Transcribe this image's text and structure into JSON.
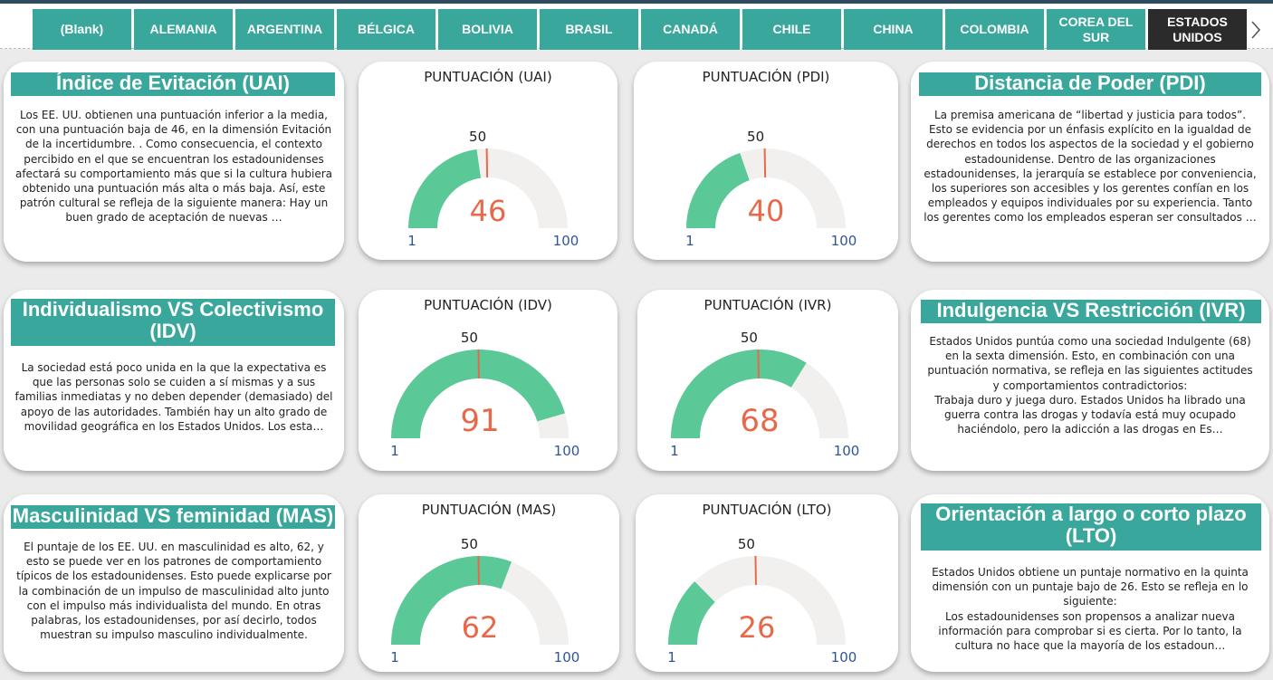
{
  "slicer": {
    "items": [
      "(Blank)",
      "ALEMANIA",
      "ARGENTINA",
      "BÉLGICA",
      "BOLIVIA",
      "BRASIL",
      "CANADÁ",
      "CHILE",
      "CHINA",
      "COLOMBIA",
      "COREA DEL SUR",
      "ESTADOS UNIDOS"
    ],
    "selected": "ESTADOS UNIDOS",
    "next_icon": "chevron-right-icon"
  },
  "colors": {
    "accent": "#3aa79c",
    "gauge_fill": "#5bc898",
    "gauge_track": "#f1f0ee",
    "target": "#e8684a",
    "value": "#e8684a",
    "minmax": "#2f5597"
  },
  "dimensions": {
    "uai": {
      "title": "Índice de Evitación (UAI)",
      "text": "Los EE. UU. obtienen una puntuación inferior a la media, con una puntuación baja de 46, en la dimensión Evitación de la incertidumbre. . Como consecuencia, el contexto percibido en el que se encuentran los estadounidenses afectará su comportamiento más que si la cultura hubiera obtenido una puntuación más alta o más baja. Así, este patrón cultural se refleja de la siguiente manera: Hay un buen grado de aceptación de nuevas …",
      "gauge": {
        "title": "PUNTUACIÓN (UAI)",
        "value": 46,
        "min": 1,
        "max": 100,
        "target": 50
      }
    },
    "pdi": {
      "title": "Distancia de Poder (PDI)",
      "text": "La premisa americana de “libertad y justicia para todos”. Esto se evidencia por un énfasis explícito en la igualdad de derechos en todos los aspectos de la sociedad y el gobierno estadounidense. Dentro de las organizaciones estadounidenses, la jerarquía se establece por conveniencia, los superiores son accesibles y los gerentes confían en los empleados y equipos individuales por su experiencia. Tanto los gerentes como los empleados esperan ser consultados …",
      "gauge": {
        "title": "PUNTUACIÓN (PDI)",
        "value": 40,
        "min": 1,
        "max": 100,
        "target": 50
      }
    },
    "idv": {
      "title": "Individualismo VS Colectivismo (IDV)",
      "text": "La sociedad está poco unida en la que la expectativa es que las personas solo se cuiden a sí mismas y a sus familias inmediatas y no deben depender (demasiado) del apoyo de las autoridades. También hay un alto grado de movilidad geográfica en los Estados Unidos. Los esta…",
      "gauge": {
        "title": "PUNTUACIÓN (IDV)",
        "value": 91,
        "min": 1,
        "max": 100,
        "target": 50
      }
    },
    "ivr": {
      "title": "Indulgencia VS Restricción (IVR)",
      "text": "Estados Unidos puntúa como una sociedad Indulgente (68) en la sexta dimensión. Esto, en combinación con una puntuación normativa, se refleja en las siguientes actitudes y comportamientos contradictorios:\nTrabaja duro y juega duro. Estados Unidos ha librado una guerra contra las drogas y todavía está muy ocupado haciéndolo, pero la adicción a las drogas en Es…",
      "gauge": {
        "title": "PUNTUACIÓN (IVR)",
        "value": 68,
        "min": 1,
        "max": 100,
        "target": 50
      }
    },
    "mas": {
      "title": "Masculinidad VS feminidad (MAS)",
      "text": "El puntaje de los EE. UU. en masculinidad es alto, 62, y esto se puede ver en los patrones de comportamiento típicos de los estadounidenses. Esto puede explicarse por la combinación de un impulso de masculinidad alto junto con el impulso más individualista del mundo. En otras palabras, los estadounidenses, por así decirlo, todos muestran su impulso masculino individualmente.",
      "gauge": {
        "title": "PUNTUACIÓN (MAS)",
        "value": 62,
        "min": 1,
        "max": 100,
        "target": 50
      }
    },
    "lto": {
      "title": "Orientación a largo o corto plazo (LTO)",
      "text": "Estados Unidos obtiene un puntaje normativo en la quinta dimensión con un puntaje bajo de 26. Esto se refleja en lo siguiente:\nLos estadounidenses son propensos a analizar nueva información para comprobar si es cierta. Por lo tanto, la cultura no hace que la mayoría de los estadoun…",
      "gauge": {
        "title": "PUNTUACIÓN (LTO)",
        "value": 26,
        "min": 1,
        "max": 100,
        "target": 50
      }
    }
  }
}
